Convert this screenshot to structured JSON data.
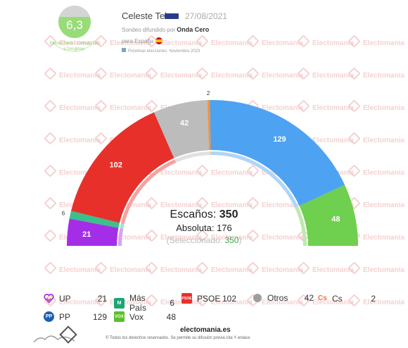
{
  "header": {
    "rating": "6,3",
    "rating_caption": "ElectoCheck - Celeste Tel a Desglose",
    "pollster": "Celeste Tel",
    "date": "27/08/2021",
    "subtitle_prefix": "Sondeo difundido por",
    "media": "Onda Cero",
    "scope": "para España",
    "next_elections": "Próximas elecciones: Noviembre 2023"
  },
  "watermark": "Electomania",
  "center": {
    "seats_label": "Escaños:",
    "seats_value": "350",
    "majority_label": "Absoluta:",
    "majority_value": "176",
    "selected_label": "(Seleccionado:",
    "selected_value": "350",
    "selected_close": ")"
  },
  "chart_data": {
    "type": "pie",
    "title": "",
    "total": 350,
    "series": [
      {
        "name": "UP",
        "value": 21,
        "color": "#a42ee8"
      },
      {
        "name": "Más País",
        "value": 6,
        "color": "#3bbf8c"
      },
      {
        "name": "PSOE",
        "value": 102,
        "color": "#e8302b"
      },
      {
        "name": "Otros",
        "value": 42,
        "color": "#bcbcbc"
      },
      {
        "name": "Cs",
        "value": 2,
        "color": "#f3923d"
      },
      {
        "name": "PP",
        "value": 129,
        "color": "#4ea2f2"
      },
      {
        "name": "Vox",
        "value": 48,
        "color": "#6fcf4e"
      }
    ]
  },
  "legend": [
    {
      "name": "UP",
      "value": "21",
      "icon": "heart-icon",
      "color": "#a42ee8"
    },
    {
      "name": "Más País",
      "value": "6",
      "icon": "mas-pais-icon",
      "color": "#1aa575"
    },
    {
      "name": "PSOE",
      "value": "102",
      "icon": "psoe-icon",
      "color": "#e8302b"
    },
    {
      "name": "Otros",
      "value": "42",
      "icon": "circle-icon",
      "color": "#9e9e9e"
    },
    {
      "name": "Cs",
      "value": "2",
      "icon": "cs-icon",
      "color": "#f3703d"
    },
    {
      "name": "PP",
      "value": "129",
      "icon": "pp-icon",
      "color": "#1d5fb3"
    },
    {
      "name": "Vox",
      "value": "48",
      "icon": "vox-icon",
      "color": "#5cbf2a"
    }
  ],
  "footer": {
    "brand": "electomania.es",
    "copyright": "© Todos los derechos reservados. Se permite su difusión previa cita Y enlace"
  }
}
